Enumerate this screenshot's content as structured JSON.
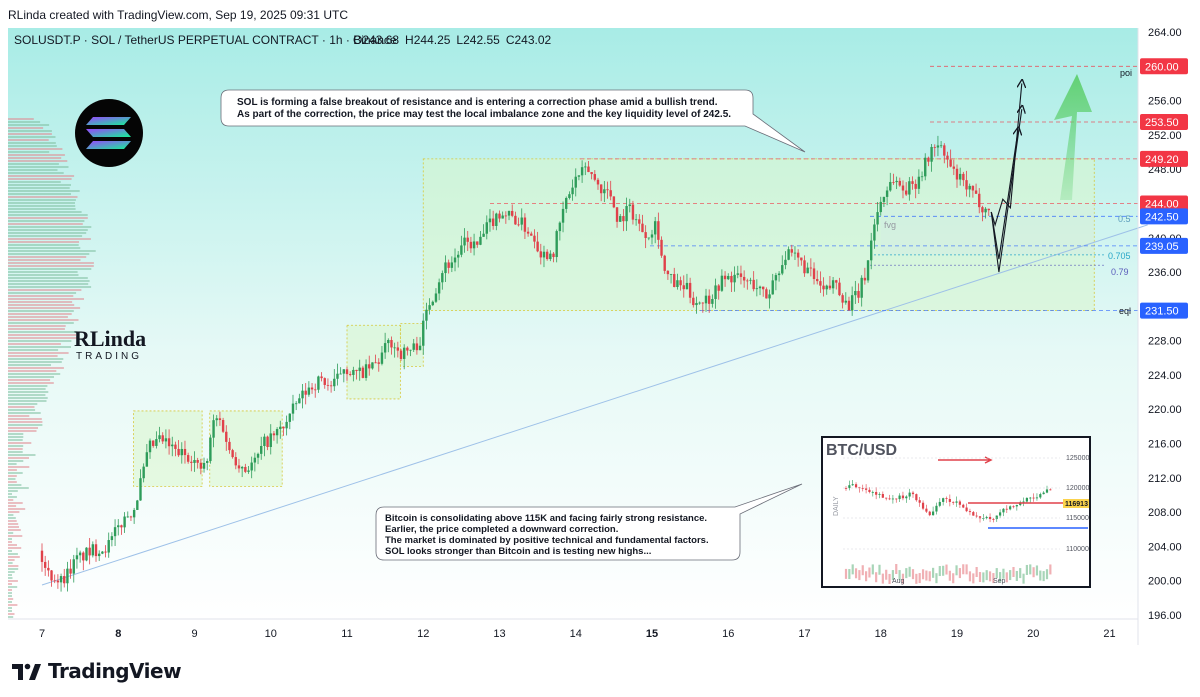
{
  "header": {
    "credit": "RLinda created with TradingView.com, Sep 19, 2025 09:31 UTC",
    "symbol_line": "SOLUSDT.P · SOL / TetherUS PERPETUAL CONTRACT · 1h · Binance",
    "o_label": "O",
    "o": "243.68",
    "h_label": "H",
    "h": "244.25",
    "l_label": "L",
    "l": "242.55",
    "c_label": "C",
    "c": "243.02"
  },
  "annotations": {
    "sol_note": [
      "SOL is forming a false breakout of resistance and is entering a correction phase amid a bullish trend.",
      "As part of the correction, the price may test the local imbalance zone and the key liquidity level of 242.5."
    ],
    "btc_note": [
      "Bitcoin is consolidating above 115K and facing fairly strong resistance.",
      "Earlier, the price completed a downward correction.",
      "The market is dominated by positive technical and fundamental factors.",
      "SOL looks stronger than Bitcoin and is testing new highs..."
    ],
    "fvg": "fvg",
    "poi": "poi",
    "eql": "eql",
    "fib_05": "0.5",
    "fib_0705": "0.705",
    "fib_079": "0.79"
  },
  "watermark": {
    "brand_top": "RLinda",
    "brand_bottom": "TRADING"
  },
  "inset": {
    "title": "BTC/USD",
    "side_label": "DAILY",
    "price_labels": [
      "125000",
      "120000",
      "115000",
      "110000"
    ],
    "current_label": "116913",
    "month_labels": [
      "Aug",
      "Sep"
    ]
  },
  "footer": {
    "brand": "TradingView"
  },
  "colors": {
    "background_top": "#a8ece6",
    "background_bottom": "#ffffff",
    "bull": "#2e9c5a",
    "bear": "#e0414a",
    "zone_fill": "#d9f5cc",
    "zone_border": "#d6c83a",
    "trendline": "#9ec1e8",
    "red_label": "#f23645",
    "blue_label": "#2962ff",
    "arrow_green": "#5ecf6e"
  },
  "chart_data": {
    "type": "candlestick",
    "symbol": "SOLUSDT.P",
    "timeframe": "1h",
    "y_axis": {
      "min": 196,
      "max": 264,
      "ticks": [
        196,
        200,
        204,
        208,
        212,
        216,
        220,
        224,
        228,
        232,
        236,
        240,
        244,
        248,
        252,
        256,
        260,
        264
      ]
    },
    "x_axis": {
      "ticks": [
        "7",
        "8",
        "9",
        "10",
        "11",
        "12",
        "13",
        "14",
        "15",
        "16",
        "17",
        "18",
        "19",
        "20",
        "21"
      ],
      "bold_ticks": [
        "8",
        "15"
      ],
      "range_days": [
        7.0,
        21.5
      ]
    },
    "price_levels": [
      {
        "label": "260.00",
        "value": 260.0,
        "kind": "red"
      },
      {
        "label": "253.50",
        "value": 253.5,
        "kind": "red"
      },
      {
        "label": "249.20",
        "value": 249.2,
        "kind": "red"
      },
      {
        "label": "244.00",
        "value": 244.0,
        "kind": "red"
      },
      {
        "label": "242.50",
        "value": 242.5,
        "kind": "blue"
      },
      {
        "label": "239.05",
        "value": 239.05,
        "kind": "blue"
      },
      {
        "label": "231.50",
        "value": 231.5,
        "kind": "blue"
      }
    ],
    "range_zones": [
      {
        "x": [
          8.2,
          9.1
        ],
        "y": [
          211,
          219.8
        ]
      },
      {
        "x": [
          9.2,
          10.15
        ],
        "y": [
          211,
          219.8
        ]
      },
      {
        "x": [
          11.0,
          11.7
        ],
        "y": [
          221.2,
          229.8
        ]
      },
      {
        "x": [
          11.7,
          12.0
        ],
        "y": [
          225,
          230
        ]
      },
      {
        "x": [
          12.0,
          20.8
        ],
        "y": [
          231.5,
          249.2
        ]
      }
    ],
    "imbalance_zone": {
      "x": [
        18.0,
        20.8
      ],
      "y": [
        238,
        244
      ]
    },
    "path": [
      [
        7.0,
        203.5
      ],
      [
        7.1,
        201
      ],
      [
        7.3,
        200
      ],
      [
        7.5,
        202.5
      ],
      [
        7.7,
        203.5
      ],
      [
        7.9,
        204
      ],
      [
        8.0,
        205.5
      ],
      [
        8.1,
        207
      ],
      [
        8.25,
        208.5
      ],
      [
        8.35,
        212
      ],
      [
        8.45,
        215.5
      ],
      [
        8.6,
        216.5
      ],
      [
        8.8,
        215
      ],
      [
        9.0,
        214.5
      ],
      [
        9.1,
        213
      ],
      [
        9.2,
        213.5
      ],
      [
        9.3,
        219
      ],
      [
        9.4,
        218.5
      ],
      [
        9.5,
        215
      ],
      [
        9.6,
        214
      ],
      [
        9.7,
        213
      ],
      [
        9.85,
        214
      ],
      [
        9.95,
        216
      ],
      [
        10.1,
        217
      ],
      [
        10.25,
        218.5
      ],
      [
        10.4,
        221
      ],
      [
        10.55,
        222.5
      ],
      [
        10.7,
        223.5
      ],
      [
        10.85,
        222.5
      ],
      [
        11.0,
        225
      ],
      [
        11.15,
        224
      ],
      [
        11.3,
        224.5
      ],
      [
        11.45,
        225.5
      ],
      [
        11.6,
        228
      ],
      [
        11.75,
        226.5
      ],
      [
        11.9,
        227
      ],
      [
        12.0,
        228
      ],
      [
        12.1,
        232
      ],
      [
        12.2,
        234
      ],
      [
        12.3,
        236.5
      ],
      [
        12.45,
        237.5
      ],
      [
        12.6,
        239.5
      ],
      [
        12.75,
        239
      ],
      [
        12.9,
        241.5
      ],
      [
        13.05,
        243
      ],
      [
        13.2,
        242.5
      ],
      [
        13.35,
        241.5
      ],
      [
        13.5,
        240
      ],
      [
        13.6,
        238
      ],
      [
        13.75,
        238.5
      ],
      [
        13.9,
        244
      ],
      [
        14.05,
        247
      ],
      [
        14.2,
        248
      ],
      [
        14.35,
        246
      ],
      [
        14.5,
        245
      ],
      [
        14.6,
        242
      ],
      [
        14.75,
        243.5
      ],
      [
        14.9,
        241
      ],
      [
        15.0,
        240.5
      ],
      [
        15.1,
        242
      ],
      [
        15.2,
        236
      ],
      [
        15.35,
        234.5
      ],
      [
        15.5,
        234
      ],
      [
        15.6,
        232.5
      ],
      [
        15.8,
        233
      ],
      [
        15.95,
        235
      ],
      [
        16.1,
        235.5
      ],
      [
        16.25,
        235
      ],
      [
        16.4,
        234.5
      ],
      [
        16.55,
        233
      ],
      [
        16.65,
        235.5
      ],
      [
        16.8,
        238
      ],
      [
        16.95,
        237.5
      ],
      [
        17.1,
        236
      ],
      [
        17.3,
        233.5
      ],
      [
        17.45,
        235
      ],
      [
        17.6,
        232
      ],
      [
        17.75,
        233.5
      ],
      [
        17.85,
        236
      ],
      [
        17.95,
        241.5
      ],
      [
        18.05,
        244.5
      ],
      [
        18.2,
        247
      ],
      [
        18.35,
        245.5
      ],
      [
        18.5,
        246.5
      ],
      [
        18.65,
        249
      ],
      [
        18.75,
        251
      ],
      [
        18.85,
        250
      ],
      [
        19.0,
        247.5
      ],
      [
        19.15,
        246
      ],
      [
        19.3,
        244.5
      ],
      [
        19.45,
        243
      ]
    ],
    "forecast_paths": [
      [
        [
          19.45,
          243
        ],
        [
          19.5,
          241.5
        ],
        [
          19.6,
          244.5
        ],
        [
          19.7,
          243.5
        ],
        [
          19.85,
          258
        ]
      ],
      [
        [
          19.45,
          243
        ],
        [
          19.55,
          237.5
        ],
        [
          19.8,
          252.5
        ]
      ],
      [
        [
          19.45,
          243
        ],
        [
          19.55,
          236
        ],
        [
          19.85,
          255
        ]
      ]
    ],
    "trendline": [
      [
        7.0,
        199.5
      ],
      [
        21.5,
        241.5
      ]
    ],
    "bullish_target": 260.0
  }
}
